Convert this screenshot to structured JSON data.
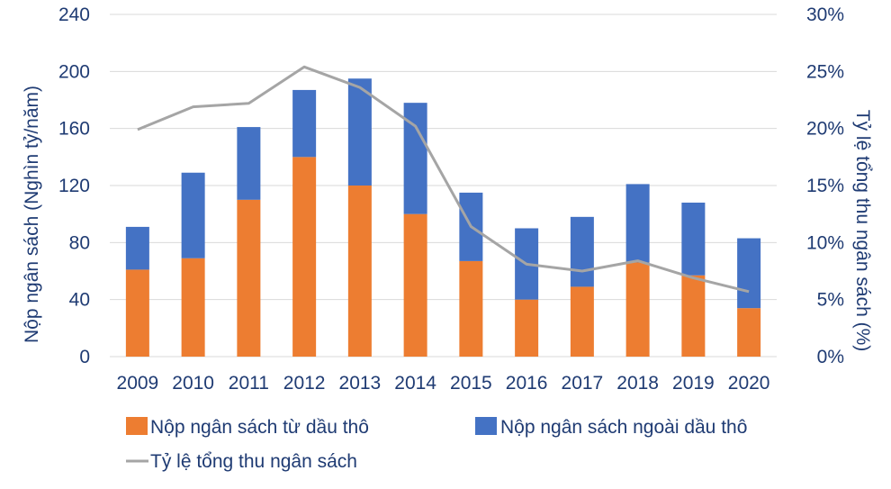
{
  "chart_data": {
    "type": "bar",
    "stacked": true,
    "categories": [
      "2009",
      "2010",
      "2011",
      "2012",
      "2013",
      "2014",
      "2015",
      "2016",
      "2017",
      "2018",
      "2019",
      "2020"
    ],
    "series": [
      {
        "name": "Nộp ngân sách từ dầu thô",
        "type": "bar",
        "axis": "left",
        "color": "#ed7d31",
        "values": [
          61,
          69,
          110,
          140,
          120,
          100,
          67,
          40,
          49,
          66,
          57,
          34
        ]
      },
      {
        "name": "Nộp ngân sách ngoài dầu thô",
        "type": "bar",
        "axis": "left",
        "color": "#4472c4",
        "values": [
          30,
          60,
          51,
          47,
          75,
          78,
          48,
          50,
          49,
          55,
          51,
          49
        ]
      },
      {
        "name": "Tỷ lệ tổng thu ngân sách",
        "type": "line",
        "axis": "right",
        "color": "#a5a5a5",
        "values": [
          19.9,
          21.9,
          22.2,
          25.4,
          23.6,
          20.2,
          11.4,
          8.1,
          7.5,
          8.4,
          6.9,
          5.7
        ]
      }
    ],
    "ylabel": "Nộp ngân sách (Nghìn tỷ/năm)",
    "y2label": "Tỷ lệ tổng thu ngân sách (%)",
    "ylim": [
      0,
      240
    ],
    "y2lim": [
      0,
      30
    ],
    "yticks": [
      "0",
      "40",
      "80",
      "120",
      "160",
      "200",
      "240"
    ],
    "y2ticks": [
      "0%",
      "5%",
      "10%",
      "15%",
      "20%",
      "25%",
      "30%"
    ],
    "grid": true,
    "legend_position": "bottom"
  }
}
